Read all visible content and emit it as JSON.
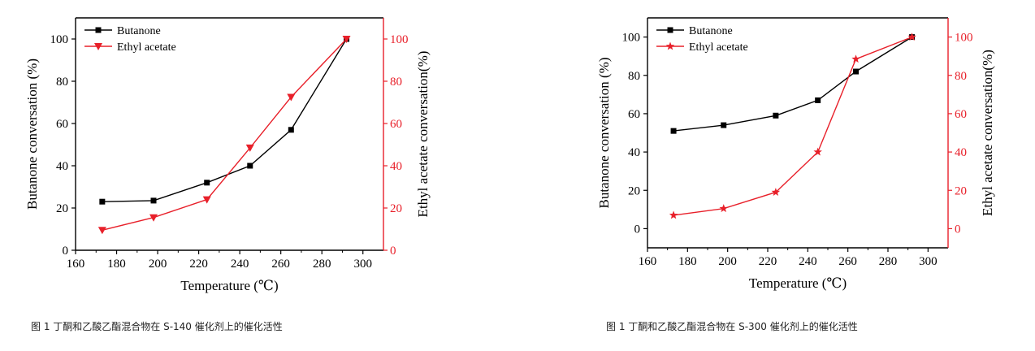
{
  "colors": {
    "left": "#000000",
    "right": "#e8202a"
  },
  "chart_data": [
    {
      "type": "line",
      "xlabel": "Temperature (℃)",
      "ylabel_left": "Butanone conversation (%)",
      "ylabel_right": "Ethyl acetate conversation(%)",
      "xlim": [
        160,
        310
      ],
      "xticks": [
        160,
        180,
        200,
        220,
        240,
        260,
        280,
        300
      ],
      "ylim_left": [
        0,
        110
      ],
      "yticks_left": [
        0,
        20,
        40,
        60,
        80,
        100
      ],
      "ylim_right": [
        0,
        110
      ],
      "yticks_right": [
        0,
        20,
        40,
        60,
        80,
        100
      ],
      "legend_position": "top-left",
      "series": [
        {
          "name": "Butanone",
          "axis": "left",
          "marker": "square",
          "x": [
            173,
            198,
            224,
            245,
            265,
            292
          ],
          "y": [
            23,
            23.5,
            32,
            40,
            57,
            100
          ]
        },
        {
          "name": "Ethyl acetate",
          "axis": "right",
          "marker": "triangle-down",
          "x": [
            173,
            198,
            224,
            245,
            265,
            292
          ],
          "y": [
            9.5,
            15.5,
            24,
            48.5,
            72.5,
            100
          ]
        }
      ],
      "caption": "图 1  丁酮和乙酸乙酯混合物在 S-140 催化剂上的催化活性"
    },
    {
      "type": "line",
      "xlabel": "Temperature (℃)",
      "ylabel_left": "Butanone conversation (%)",
      "ylabel_right": "Ethyl acetate conversation(%)",
      "xlim": [
        160,
        310
      ],
      "xticks": [
        160,
        180,
        200,
        220,
        240,
        260,
        280,
        300
      ],
      "ylim_left": [
        -10,
        110
      ],
      "yticks_left": [
        0,
        20,
        40,
        60,
        80,
        100
      ],
      "ylim_right": [
        -10,
        110
      ],
      "yticks_right": [
        0,
        20,
        40,
        60,
        80,
        100
      ],
      "legend_position": "top-left",
      "series": [
        {
          "name": "Butanone",
          "axis": "left",
          "marker": "square",
          "x": [
            173,
            198,
            224,
            245,
            264,
            292
          ],
          "y": [
            51,
            54,
            59,
            67,
            82,
            100
          ]
        },
        {
          "name": "Ethyl acetate",
          "axis": "right",
          "marker": "star",
          "x": [
            173,
            198,
            224,
            245,
            264,
            292
          ],
          "y": [
            7,
            10.5,
            19,
            40,
            88.5,
            100
          ]
        }
      ],
      "caption": "图 1  丁酮和乙酸乙酯混合物在 S-300 催化剂上的催化活性"
    }
  ]
}
